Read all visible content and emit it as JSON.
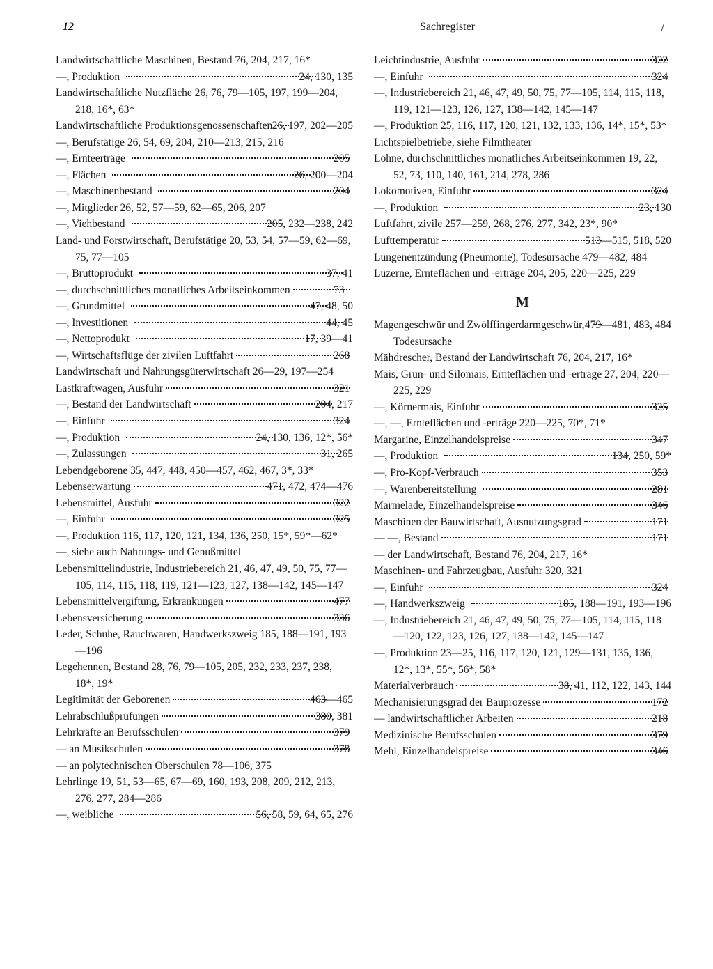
{
  "header": {
    "page_number": "12",
    "title": "Sachregister",
    "slash": "/"
  },
  "left_column": [
    {
      "type": "wrap",
      "text": "Landwirtschaftliche Maschinen, Bestand 76, 204, 217, 16*"
    },
    {
      "type": "entry",
      "label": "—, Produktion",
      "pages": "24, 130, 135"
    },
    {
      "type": "wrap",
      "text": "Landwirtschaftliche Nutzfläche 26, 76, 79—105, 197, 199—204, 218, 16*, 63*"
    },
    {
      "type": "entry",
      "label": "Landwirtschaftliche Produktionsgenossenschaften",
      "pages": "26, 197, 202—205"
    },
    {
      "type": "wrap",
      "text": "—, Berufstätige 26, 54, 69, 204, 210—213, 215, 216"
    },
    {
      "type": "entry",
      "label": "—, Ernteerträge",
      "pages": "205"
    },
    {
      "type": "entry",
      "label": "—, Flächen",
      "pages": "26, 200—204"
    },
    {
      "type": "entry",
      "label": "—, Maschinenbestand",
      "pages": "204"
    },
    {
      "type": "wrap",
      "text": "—, Mitglieder 26, 52, 57—59, 62—65, 206, 207"
    },
    {
      "type": "entry",
      "label": "—, Viehbestand",
      "pages": "205, 232—238, 242"
    },
    {
      "type": "wrap",
      "text": "Land- und Forstwirtschaft, Berufstätige 20, 53, 54, 57—59, 62—69, 75, 77—105"
    },
    {
      "type": "entry",
      "label": "—, Bruttoprodukt",
      "pages": "37, 41"
    },
    {
      "type": "entry",
      "label": "—, durchschnittliches monatliches Arbeitseinkommen",
      "pages": "73"
    },
    {
      "type": "entry",
      "label": "—, Grundmittel",
      "pages": "47, 48, 50"
    },
    {
      "type": "entry",
      "label": "—, Investitionen",
      "pages": "44, 45"
    },
    {
      "type": "entry",
      "label": "—, Nettoprodukt",
      "pages": "17, 39—41"
    },
    {
      "type": "entry",
      "label": "—, Wirtschaftsflüge der zivilen Luftfahrt",
      "pages": "268"
    },
    {
      "type": "wrap",
      "text": "Landwirtschaft und Nahrungsgüterwirtschaft 26—29, 197—254"
    },
    {
      "type": "entry",
      "label": "Lastkraftwagen, Ausfuhr",
      "pages": "321"
    },
    {
      "type": "entry",
      "label": "—, Bestand der Landwirtschaft",
      "pages": "204, 217"
    },
    {
      "type": "entry",
      "label": "—, Einfuhr",
      "pages": "324"
    },
    {
      "type": "entry",
      "label": "—, Produktion",
      "pages": "24, 130, 136, 12*, 56*"
    },
    {
      "type": "entry",
      "label": "—, Zulassungen",
      "pages": "31, 265"
    },
    {
      "type": "wrap",
      "text": "Lebendgeborene 35, 447, 448, 450—457, 462, 467, 3*, 33*"
    },
    {
      "type": "entry",
      "label": "Lebenserwartung",
      "pages": "471, 472, 474—476"
    },
    {
      "type": "entry",
      "label": "Lebensmittel, Ausfuhr",
      "pages": "322"
    },
    {
      "type": "entry",
      "label": "—, Einfuhr",
      "pages": "325"
    },
    {
      "type": "wrap",
      "text": "—, Produktion 116, 117, 120, 121, 134, 136, 250, 15*, 59*—62*"
    },
    {
      "type": "wrap",
      "text": "—, siehe auch Nahrungs- und Genußmittel"
    },
    {
      "type": "wrap",
      "text": "Lebensmittelindustrie, Industriebereich 21, 46, 47, 49, 50, 75, 77—105, 114, 115, 118, 119, 121—123, 127, 138—142, 145—147"
    },
    {
      "type": "entry",
      "label": "Lebensmittelvergiftung, Erkrankungen",
      "pages": "477"
    },
    {
      "type": "entry",
      "label": "Lebensversicherung",
      "pages": "336"
    },
    {
      "type": "wrap",
      "text": "Leder, Schuhe, Rauchwaren, Handwerkszweig 185, 188—191, 193—196"
    },
    {
      "type": "wrap",
      "text": "Legehennen, Bestand 28, 76, 79—105, 205, 232, 233, 237, 238, 18*, 19*"
    },
    {
      "type": "entry",
      "label": "Legitimität der Geborenen",
      "pages": "463—465"
    },
    {
      "type": "entry",
      "label": "Lehrabschlußprüfungen",
      "pages": "380, 381"
    },
    {
      "type": "entry",
      "label": "Lehrkräfte an Berufsschulen",
      "pages": "379"
    },
    {
      "type": "entry",
      "label": "— an Musikschulen",
      "pages": "378"
    },
    {
      "type": "wrap",
      "text": "— an polytechnischen Oberschulen 78—106, 375"
    },
    {
      "type": "wrap",
      "text": "Lehrlinge 19, 51, 53—65, 67—69, 160, 193, 208, 209, 212, 213, 276, 277, 284—286"
    },
    {
      "type": "entry",
      "label": "—, weibliche",
      "pages": "56, 58, 59, 64, 65, 276"
    }
  ],
  "right_column_top": [
    {
      "type": "entry",
      "label": "Leichtindustrie, Ausfuhr",
      "pages": "322"
    },
    {
      "type": "entry",
      "label": "—, Einfuhr",
      "pages": "324"
    },
    {
      "type": "wrap",
      "text": "—, Industriebereich 21, 46, 47, 49, 50, 75, 77—105, 114, 115, 118, 119, 121—123, 126, 127, 138—142, 145—147"
    },
    {
      "type": "wrap",
      "text": "—, Produktion 25, 116, 117, 120, 121, 132, 133, 136, 14*, 15*, 53*"
    },
    {
      "type": "wrap",
      "text": "Lichtspielbetriebe, siehe Filmtheater"
    },
    {
      "type": "wrap",
      "text": "Löhne, durchschnittliches monatliches Arbeitseinkommen 19, 22, 52, 73, 110, 140, 161, 214, 278, 286"
    },
    {
      "type": "entry",
      "label": "Lokomotiven, Einfuhr",
      "pages": "324"
    },
    {
      "type": "entry",
      "label": "—, Produktion",
      "pages": "23, 130"
    },
    {
      "type": "wrap",
      "text": "Luftfahrt, zivile 257—259, 268, 276, 277, 342, 23*, 90*"
    },
    {
      "type": "entry",
      "label": "Lufttemperatur",
      "pages": "513—515, 518, 520"
    },
    {
      "type": "wrap",
      "text": "Lungenentzündung (Pneumonie), Todesursache 479—482, 484"
    },
    {
      "type": "wrap",
      "text": "Luzerne, Ernteflächen und -erträge 204, 205, 220—225, 229"
    }
  ],
  "section_m_heading": "M",
  "right_column_m": [
    {
      "type": "entry",
      "label": "Magengeschwür und Zwölffingerdarmgeschwür, Todesursache",
      "pages": "479—481, 483, 484"
    },
    {
      "type": "wrap",
      "text": "Mähdrescher, Bestand der Landwirtschaft 76, 204, 217, 16*"
    },
    {
      "type": "wrap",
      "text": "Mais, Grün- und Silomais, Ernteflächen und -erträge 27, 204, 220—225, 229"
    },
    {
      "type": "entry",
      "label": "—, Körnermais, Einfuhr",
      "pages": "325"
    },
    {
      "type": "wrap",
      "text": "—, —, Ernteflächen und -erträge 220—225, 70*, 71*"
    },
    {
      "type": "entry",
      "label": "Margarine, Einzelhandelspreise",
      "pages": "347"
    },
    {
      "type": "entry",
      "label": "—, Produktion",
      "pages": "134, 250, 59*"
    },
    {
      "type": "entry",
      "label": "—, Pro-Kopf-Verbrauch",
      "pages": "353"
    },
    {
      "type": "entry",
      "label": "—, Warenbereitstellung",
      "pages": "281"
    },
    {
      "type": "entry",
      "label": "Marmelade, Einzelhandelspreise",
      "pages": "346"
    },
    {
      "type": "entry",
      "label": "Maschinen der Bauwirtschaft, Ausnutzungsgrad",
      "pages": "171"
    },
    {
      "type": "entry",
      "label": "— —, Bestand",
      "pages": "171"
    },
    {
      "type": "wrap",
      "text": "— der Landwirtschaft, Bestand 76, 204, 217, 16*"
    },
    {
      "type": "wrap",
      "text": "Maschinen- und Fahrzeugbau, Ausfuhr 320, 321"
    },
    {
      "type": "entry",
      "label": "—, Einfuhr",
      "pages": "324"
    },
    {
      "type": "entry",
      "label": "—, Handwerkszweig",
      "pages": "185, 188—191, 193—196"
    },
    {
      "type": "wrap",
      "text": "—, Industriebereich 21, 46, 47, 49, 50, 75, 77—105, 114, 115, 118—120, 122, 123, 126, 127, 138—142, 145—147"
    },
    {
      "type": "wrap",
      "text": "—, Produktion 23—25, 116, 117, 120, 121, 129—131, 135, 136, 12*, 13*, 55*, 56*, 58*"
    },
    {
      "type": "entry",
      "label": "Materialverbrauch",
      "pages": "38, 41, 112, 122, 143, 144"
    },
    {
      "type": "entry",
      "label": "Mechanisierungsgrad der Bauprozesse",
      "pages": "172"
    },
    {
      "type": "entry",
      "label": "— landwirtschaftlicher Arbeiten",
      "pages": "218"
    },
    {
      "type": "entry",
      "label": "Medizinische Berufsschulen",
      "pages": "379"
    },
    {
      "type": "entry",
      "label": "Mehl, Einzelhandelspreise",
      "pages": "346"
    }
  ]
}
